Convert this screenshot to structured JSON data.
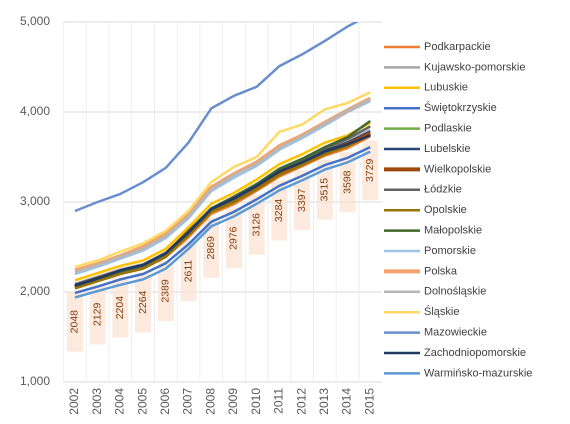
{
  "chart_data": {
    "type": "line",
    "categories": [
      "2002",
      "2003",
      "2004",
      "2005",
      "2006",
      "2007",
      "2008",
      "2009",
      "2010",
      "2011",
      "2012",
      "2013",
      "2014",
      "2015"
    ],
    "ylim": [
      1000,
      5000
    ],
    "yticks": [
      {
        "value": 1000,
        "label": "1,000"
      },
      {
        "value": 2000,
        "label": "2,000"
      },
      {
        "value": 3000,
        "label": "3,000"
      },
      {
        "value": 4000,
        "label": "4,000"
      },
      {
        "value": 5000,
        "label": "5,000"
      }
    ],
    "grid": true,
    "legend": "right",
    "series": [
      {
        "name": "Podkarpackie",
        "color": "#ed7d31",
        "data_labels": true,
        "values": [
          2048,
          2129,
          2204,
          2264,
          2389,
          2611,
          2869,
          2976,
          3126,
          3284,
          3397,
          3515,
          3598,
          3729
        ]
      },
      {
        "name": "Kujawsko-pomorskie",
        "color": "#a5a5a5",
        "values": [
          2090,
          2170,
          2250,
          2310,
          2440,
          2660,
          2930,
          3040,
          3190,
          3350,
          3460,
          3590,
          3670,
          3800
        ]
      },
      {
        "name": "Lubuskie",
        "color": "#ffc000",
        "values": [
          2130,
          2210,
          2290,
          2350,
          2480,
          2720,
          2980,
          3100,
          3250,
          3420,
          3530,
          3660,
          3740,
          3880
        ]
      },
      {
        "name": "Świętokrzyskie",
        "color": "#4472c4",
        "values": [
          1990,
          2060,
          2140,
          2200,
          2320,
          2530,
          2780,
          2890,
          3030,
          3180,
          3290,
          3410,
          3490,
          3610
        ]
      },
      {
        "name": "Podlaskie",
        "color": "#70ad47",
        "values": [
          2060,
          2140,
          2210,
          2270,
          2400,
          2630,
          2890,
          3000,
          3150,
          3300,
          3420,
          3540,
          3620,
          3750
        ]
      },
      {
        "name": "Lubelskie",
        "color": "#264478",
        "values": [
          2080,
          2160,
          2240,
          2300,
          2430,
          2650,
          2920,
          3030,
          3180,
          3330,
          3450,
          3570,
          3660,
          3780
        ]
      },
      {
        "name": "Wielkopolskie",
        "color": "#9e480e",
        "width": 4,
        "values": [
          2060,
          2150,
          2230,
          2290,
          2420,
          2670,
          2910,
          3010,
          3160,
          3320,
          3430,
          3550,
          3640,
          3760
        ]
      },
      {
        "name": "Łódzkie",
        "color": "#636363",
        "values": [
          2050,
          2130,
          2210,
          2280,
          2410,
          2640,
          2900,
          3020,
          3180,
          3340,
          3460,
          3600,
          3700,
          3840
        ]
      },
      {
        "name": "Opolskie",
        "color": "#997300",
        "values": [
          2040,
          2120,
          2200,
          2260,
          2390,
          2630,
          2890,
          3000,
          3140,
          3300,
          3410,
          3530,
          3620,
          3740
        ]
      },
      {
        "name": "Małopolskie",
        "color": "#43682b",
        "values": [
          2070,
          2150,
          2230,
          2300,
          2430,
          2670,
          2930,
          3060,
          3200,
          3370,
          3480,
          3610,
          3720,
          3900
        ]
      },
      {
        "name": "Pomorskie",
        "color": "#9dc3e6",
        "values": [
          2200,
          2280,
          2370,
          2460,
          2600,
          2820,
          3120,
          3270,
          3400,
          3580,
          3710,
          3850,
          4000,
          4120
        ]
      },
      {
        "name": "Polska",
        "color": "#f4a26b",
        "width": 4,
        "values": [
          2240,
          2310,
          2400,
          2500,
          2640,
          2860,
          3160,
          3310,
          3440,
          3620,
          3740,
          3880,
          4020,
          4150
        ]
      },
      {
        "name": "Dolnośląskie",
        "color": "#b7b7b7",
        "values": [
          2220,
          2300,
          2390,
          2480,
          2620,
          2840,
          3140,
          3300,
          3420,
          3600,
          3730,
          3870,
          4020,
          4140
        ]
      },
      {
        "name": "Śląskie",
        "color": "#ffd966",
        "values": [
          2280,
          2350,
          2450,
          2540,
          2680,
          2900,
          3220,
          3390,
          3500,
          3780,
          3860,
          4030,
          4100,
          4220
        ]
      },
      {
        "name": "Mazowieckie",
        "color": "#698ed0",
        "values": [
          2900,
          3000,
          3090,
          3220,
          3380,
          3660,
          4040,
          4180,
          4280,
          4510,
          4640,
          4790,
          4950,
          5080
        ]
      },
      {
        "name": "Zachodniopomorskie",
        "color": "#1f3864",
        "values": [
          2070,
          2150,
          2240,
          2300,
          2430,
          2660,
          2920,
          3040,
          3180,
          3340,
          3440,
          3560,
          3640,
          3740
        ]
      },
      {
        "name": "Warmińsko-mazurskie",
        "color": "#5b9bd5",
        "values": [
          1940,
          2010,
          2080,
          2140,
          2260,
          2480,
          2730,
          2840,
          2980,
          3130,
          3240,
          3360,
          3440,
          3560
        ]
      }
    ]
  }
}
